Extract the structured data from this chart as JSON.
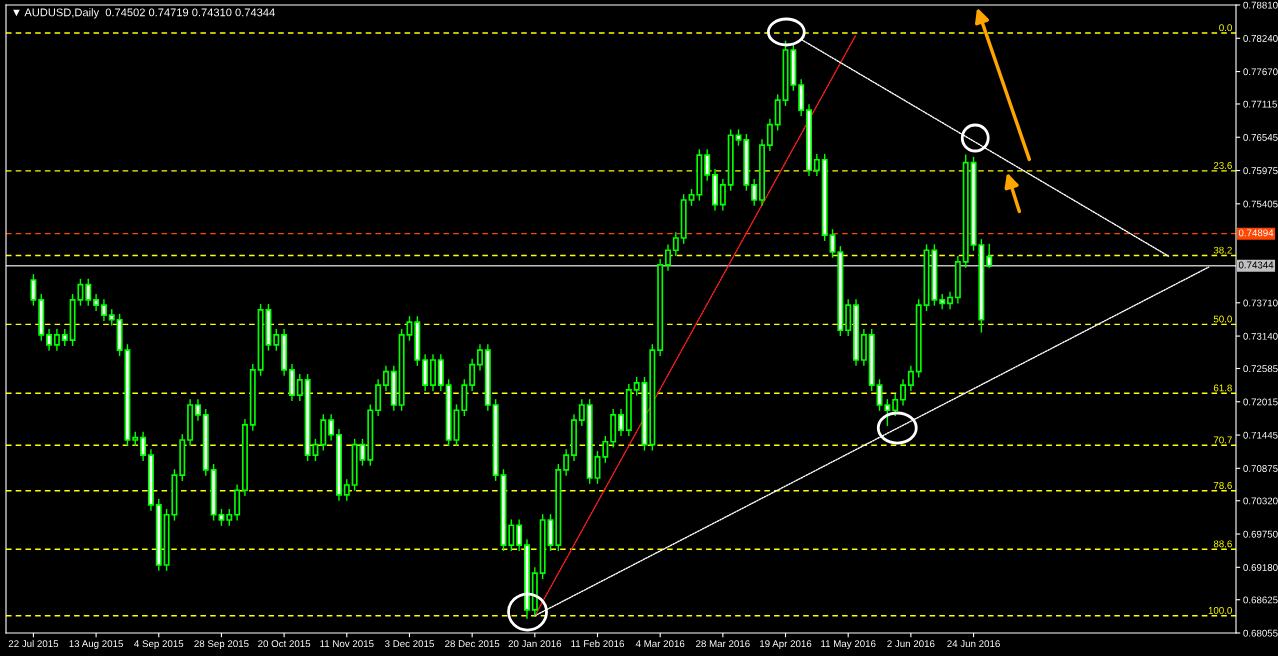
{
  "chart_data": {
    "type": "candlestick",
    "title": "▼ AUDUSD,Daily  0.74502 0.74719 0.74310 0.74344",
    "color": "#00ff00",
    "categories": [
      "22 Jul 2015",
      null,
      null,
      null,
      null,
      null,
      null,
      null,
      "13 Aug 2015",
      null,
      null,
      null,
      null,
      null,
      null,
      null,
      "4 Sep 2015",
      null,
      null,
      null,
      null,
      null,
      null,
      null,
      "28 Sep 2015",
      null,
      null,
      null,
      null,
      null,
      null,
      null,
      "20 Oct 2015",
      null,
      null,
      null,
      null,
      null,
      null,
      null,
      "11 Nov 2015",
      null,
      null,
      null,
      null,
      null,
      null,
      null,
      "3 Dec 2015",
      null,
      null,
      null,
      null,
      null,
      null,
      null,
      "28 Dec 2015",
      null,
      null,
      null,
      null,
      null,
      null,
      null,
      "20 Jan 2016",
      null,
      null,
      null,
      null,
      null,
      null,
      null,
      "11 Feb 2016",
      null,
      null,
      null,
      null,
      null,
      null,
      null,
      "4 Mar 2016",
      null,
      null,
      null,
      null,
      null,
      null,
      null,
      "28 Mar 2016",
      null,
      null,
      null,
      null,
      null,
      null,
      null,
      "19 Apr 2016",
      null,
      null,
      null,
      null,
      null,
      null,
      null,
      "11 May 2016",
      null,
      null,
      null,
      null,
      null,
      null,
      null,
      "2 Jun 2016",
      null,
      null,
      null,
      null,
      null,
      null,
      null,
      "24 Jun 2016",
      null,
      null,
      null,
      null,
      null,
      null,
      null,
      null,
      null,
      null,
      null,
      null,
      null,
      null,
      null,
      null,
      null,
      null,
      null,
      null,
      null,
      null,
      null,
      null,
      null,
      null,
      null,
      null,
      null,
      null,
      null,
      null,
      null
    ],
    "ohlc": [
      [
        0.741,
        0.742,
        0.7366,
        0.7376
      ],
      [
        0.7376,
        0.7386,
        0.7306,
        0.7316
      ],
      [
        0.7316,
        0.7326,
        0.7289,
        0.7299
      ],
      [
        0.7299,
        0.7326,
        0.7289,
        0.7316
      ],
      [
        0.7316,
        0.7326,
        0.7297,
        0.7307
      ],
      [
        0.7307,
        0.7386,
        0.7297,
        0.7376
      ],
      [
        0.7376,
        0.7412,
        0.7366,
        0.7402
      ],
      [
        0.7402,
        0.7412,
        0.7366,
        0.7376
      ],
      [
        0.7376,
        0.7386,
        0.7357,
        0.7367
      ],
      [
        0.7367,
        0.7377,
        0.734,
        0.735
      ],
      [
        0.735,
        0.736,
        0.7332,
        0.7342
      ],
      [
        0.7342,
        0.7352,
        0.728,
        0.729
      ],
      [
        0.729,
        0.73,
        0.7126,
        0.7136
      ],
      [
        0.7136,
        0.715,
        0.7126,
        0.714
      ],
      [
        0.714,
        0.715,
        0.71,
        0.711
      ],
      [
        0.711,
        0.712,
        0.7015,
        0.7025
      ],
      [
        0.7025,
        0.7035,
        0.6912,
        0.6922
      ],
      [
        0.6922,
        0.7018,
        0.6912,
        0.7008
      ],
      [
        0.7008,
        0.7086,
        0.6998,
        0.7076
      ],
      [
        0.7076,
        0.7146,
        0.7066,
        0.7136
      ],
      [
        0.7136,
        0.7206,
        0.7126,
        0.7196
      ],
      [
        0.7196,
        0.7206,
        0.7169,
        0.7179
      ],
      [
        0.7179,
        0.7189,
        0.7075,
        0.7085
      ],
      [
        0.7085,
        0.7095,
        0.6998,
        0.7008
      ],
      [
        0.7008,
        0.7018,
        0.6989,
        0.6999
      ],
      [
        0.6999,
        0.7018,
        0.6989,
        0.7008
      ],
      [
        0.7008,
        0.706,
        0.6998,
        0.705
      ],
      [
        0.705,
        0.7172,
        0.704,
        0.7162
      ],
      [
        0.7162,
        0.7266,
        0.7152,
        0.7256
      ],
      [
        0.7256,
        0.7369,
        0.7246,
        0.7359
      ],
      [
        0.7359,
        0.7369,
        0.7289,
        0.7299
      ],
      [
        0.7299,
        0.7326,
        0.7289,
        0.7316
      ],
      [
        0.7316,
        0.7326,
        0.7246,
        0.7256
      ],
      [
        0.7256,
        0.7266,
        0.7203,
        0.7213
      ],
      [
        0.7213,
        0.7249,
        0.7203,
        0.7239
      ],
      [
        0.7239,
        0.7249,
        0.71,
        0.711
      ],
      [
        0.711,
        0.7138,
        0.71,
        0.7128
      ],
      [
        0.7128,
        0.718,
        0.7118,
        0.717
      ],
      [
        0.717,
        0.718,
        0.7135,
        0.7145
      ],
      [
        0.7145,
        0.7155,
        0.7032,
        0.7042
      ],
      [
        0.7042,
        0.7069,
        0.7032,
        0.7059
      ],
      [
        0.7059,
        0.7138,
        0.7049,
        0.7128
      ],
      [
        0.7128,
        0.7138,
        0.7092,
        0.7102
      ],
      [
        0.7102,
        0.7197,
        0.7092,
        0.7187
      ],
      [
        0.7187,
        0.724,
        0.7177,
        0.723
      ],
      [
        0.723,
        0.7263,
        0.722,
        0.7253
      ],
      [
        0.7253,
        0.7263,
        0.7186,
        0.7196
      ],
      [
        0.7196,
        0.7326,
        0.7186,
        0.7316
      ],
      [
        0.7316,
        0.7348,
        0.7306,
        0.7338
      ],
      [
        0.7338,
        0.7348,
        0.7263,
        0.7273
      ],
      [
        0.7273,
        0.7283,
        0.722,
        0.723
      ],
      [
        0.723,
        0.7283,
        0.722,
        0.7273
      ],
      [
        0.7273,
        0.7283,
        0.722,
        0.723
      ],
      [
        0.723,
        0.724,
        0.7126,
        0.7136
      ],
      [
        0.7136,
        0.7197,
        0.7126,
        0.7187
      ],
      [
        0.7187,
        0.724,
        0.7177,
        0.723
      ],
      [
        0.723,
        0.7275,
        0.722,
        0.7265
      ],
      [
        0.7265,
        0.73,
        0.7255,
        0.729
      ],
      [
        0.729,
        0.73,
        0.7186,
        0.7196
      ],
      [
        0.7196,
        0.7206,
        0.7066,
        0.7076
      ],
      [
        0.7076,
        0.7086,
        0.6946,
        0.6956
      ],
      [
        0.6956,
        0.7,
        0.6946,
        0.699
      ],
      [
        0.699,
        0.7,
        0.6946,
        0.6956
      ],
      [
        0.6956,
        0.6966,
        0.683,
        0.6845
      ],
      [
        0.6845,
        0.6918,
        0.6835,
        0.6908
      ],
      [
        0.6908,
        0.7009,
        0.6898,
        0.6999
      ],
      [
        0.6999,
        0.7009,
        0.6946,
        0.6956
      ],
      [
        0.6956,
        0.7095,
        0.6946,
        0.7085
      ],
      [
        0.7085,
        0.712,
        0.7075,
        0.711
      ],
      [
        0.711,
        0.718,
        0.71,
        0.717
      ],
      [
        0.717,
        0.7206,
        0.716,
        0.7196
      ],
      [
        0.7196,
        0.7206,
        0.7061,
        0.7071
      ],
      [
        0.7071,
        0.7117,
        0.7061,
        0.7107
      ],
      [
        0.7107,
        0.7143,
        0.7097,
        0.7133
      ],
      [
        0.7133,
        0.7189,
        0.7123,
        0.7179
      ],
      [
        0.7179,
        0.7189,
        0.7143,
        0.7153
      ],
      [
        0.7153,
        0.7232,
        0.7143,
        0.7222
      ],
      [
        0.7222,
        0.7244,
        0.7212,
        0.7234
      ],
      [
        0.7234,
        0.7244,
        0.7118,
        0.7128
      ],
      [
        0.7128,
        0.73,
        0.7118,
        0.729
      ],
      [
        0.729,
        0.7446,
        0.728,
        0.7436
      ],
      [
        0.7436,
        0.7471,
        0.7426,
        0.7461
      ],
      [
        0.7461,
        0.7492,
        0.7451,
        0.7482
      ],
      [
        0.7482,
        0.7557,
        0.7472,
        0.7547
      ],
      [
        0.7547,
        0.7566,
        0.7537,
        0.7556
      ],
      [
        0.7556,
        0.7634,
        0.7546,
        0.7624
      ],
      [
        0.7624,
        0.7634,
        0.758,
        0.759
      ],
      [
        0.759,
        0.76,
        0.7529,
        0.7539
      ],
      [
        0.7539,
        0.7583,
        0.7529,
        0.7573
      ],
      [
        0.7573,
        0.7668,
        0.7563,
        0.7658
      ],
      [
        0.7658,
        0.7668,
        0.764,
        0.765
      ],
      [
        0.765,
        0.766,
        0.7563,
        0.7573
      ],
      [
        0.7573,
        0.7583,
        0.7537,
        0.7547
      ],
      [
        0.7547,
        0.7651,
        0.7537,
        0.7641
      ],
      [
        0.7641,
        0.7686,
        0.7631,
        0.7676
      ],
      [
        0.7676,
        0.7728,
        0.7666,
        0.7718
      ],
      [
        0.7718,
        0.782,
        0.7708,
        0.7804
      ],
      [
        0.7804,
        0.7814,
        0.7734,
        0.7744
      ],
      [
        0.7744,
        0.7754,
        0.7691,
        0.7701
      ],
      [
        0.7701,
        0.7711,
        0.7588,
        0.7598
      ],
      [
        0.7598,
        0.7626,
        0.7588,
        0.7616
      ],
      [
        0.7616,
        0.7626,
        0.7477,
        0.7487
      ],
      [
        0.7487,
        0.7497,
        0.7448,
        0.7458
      ],
      [
        0.7458,
        0.7468,
        0.7314,
        0.7324
      ],
      [
        0.7324,
        0.7377,
        0.7314,
        0.7367
      ],
      [
        0.7367,
        0.7377,
        0.7263,
        0.7273
      ],
      [
        0.7273,
        0.7326,
        0.7263,
        0.7316
      ],
      [
        0.7316,
        0.7326,
        0.722,
        0.723
      ],
      [
        0.723,
        0.724,
        0.7186,
        0.7196
      ],
      [
        0.7196,
        0.7206,
        0.716,
        0.7187
      ],
      [
        0.7187,
        0.7215,
        0.7177,
        0.7205
      ],
      [
        0.7205,
        0.724,
        0.7195,
        0.723
      ],
      [
        0.723,
        0.7263,
        0.722,
        0.7253
      ],
      [
        0.7253,
        0.7377,
        0.7243,
        0.7367
      ],
      [
        0.7367,
        0.7471,
        0.7357,
        0.7461
      ],
      [
        0.7461,
        0.7471,
        0.7366,
        0.7376
      ],
      [
        0.7376,
        0.7386,
        0.736,
        0.737
      ],
      [
        0.737,
        0.739,
        0.736,
        0.738
      ],
      [
        0.738,
        0.7451,
        0.737,
        0.7441
      ],
      [
        0.7441,
        0.7625,
        0.7431,
        0.7611
      ],
      [
        0.7611,
        0.7621,
        0.746,
        0.747
      ],
      [
        0.747,
        0.748,
        0.732,
        0.7342
      ],
      [
        0.745,
        0.7472,
        0.7431,
        0.7434
      ],
      null,
      null,
      null,
      null,
      null,
      null,
      null,
      null,
      null,
      null,
      null,
      null,
      null,
      null,
      null,
      null,
      null,
      null,
      null,
      null,
      null,
      null,
      null,
      null,
      null,
      null,
      null,
      null,
      null,
      null,
      null
    ],
    "series": [
      {
        "type": "line",
        "color": "#ff2020",
        "line_style": "dotted",
        "values": [
          null,
          null,
          null,
          null,
          null,
          null,
          null,
          null,
          null,
          null,
          null,
          null,
          null,
          null,
          null,
          null,
          null,
          null,
          null,
          null,
          null,
          null,
          null,
          null,
          null,
          null,
          null,
          null,
          null,
          null,
          null,
          null,
          null,
          null,
          null,
          null,
          null,
          null,
          null,
          null,
          null,
          null,
          null,
          null,
          null,
          null,
          null,
          null,
          null,
          null,
          null,
          null,
          null,
          null,
          null,
          null,
          null,
          null,
          null,
          null,
          null,
          null,
          null,
          null,
          0.6835,
          null,
          null,
          null,
          null,
          null,
          null,
          null,
          null,
          null,
          null,
          null,
          null,
          null,
          null,
          null,
          null,
          null,
          null,
          null,
          null,
          null,
          null,
          null,
          null,
          null,
          null,
          null,
          null,
          null,
          null,
          null,
          null,
          null,
          null,
          null,
          null,
          null,
          null,
          null,
          null,
          0.783,
          null,
          null,
          null,
          null,
          null,
          null,
          null,
          null,
          null,
          null,
          null,
          null,
          null,
          null,
          null,
          null,
          null,
          null,
          null,
          null,
          null,
          null,
          null,
          null,
          null,
          null,
          null,
          null,
          null,
          null,
          null,
          null,
          null,
          null,
          null,
          null,
          null,
          null,
          null,
          null,
          null,
          null,
          null,
          null,
          null,
          null,
          null,
          null
        ]
      },
      {
        "type": "line",
        "color": "#ffffff",
        "line_style": "dotted",
        "values": [
          null,
          null,
          null,
          null,
          null,
          null,
          null,
          null,
          null,
          null,
          null,
          null,
          null,
          null,
          null,
          null,
          null,
          null,
          null,
          null,
          null,
          null,
          null,
          null,
          null,
          null,
          null,
          null,
          null,
          null,
          null,
          null,
          null,
          null,
          null,
          null,
          null,
          null,
          null,
          null,
          null,
          null,
          null,
          null,
          null,
          null,
          null,
          null,
          null,
          null,
          null,
          null,
          null,
          null,
          null,
          null,
          null,
          null,
          null,
          null,
          null,
          null,
          null,
          null,
          null,
          null,
          null,
          null,
          null,
          null,
          null,
          null,
          null,
          null,
          null,
          null,
          null,
          null,
          null,
          null,
          null,
          null,
          null,
          null,
          null,
          null,
          null,
          null,
          null,
          null,
          null,
          null,
          null,
          null,
          null,
          null,
          null,
          null,
          0.7822,
          null,
          null,
          null,
          null,
          null,
          null,
          null,
          null,
          null,
          null,
          null,
          null,
          null,
          null,
          null,
          null,
          null,
          null,
          null,
          null,
          null,
          null,
          null,
          null,
          null,
          null,
          null,
          null,
          null,
          null,
          null,
          null,
          null,
          null,
          null,
          null,
          null,
          null,
          null,
          null,
          null,
          null,
          null,
          null,
          null,
          null,
          0.745,
          null,
          null,
          null,
          null,
          null,
          null,
          null,
          null
        ]
      },
      {
        "type": "line",
        "color": "#ffffff",
        "line_style": "dotted",
        "values": [
          null,
          null,
          null,
          null,
          null,
          null,
          null,
          null,
          null,
          null,
          null,
          null,
          null,
          null,
          null,
          null,
          null,
          null,
          null,
          null,
          null,
          null,
          null,
          null,
          null,
          null,
          null,
          null,
          null,
          null,
          null,
          null,
          null,
          null,
          null,
          null,
          null,
          null,
          null,
          null,
          null,
          null,
          null,
          null,
          null,
          null,
          null,
          null,
          null,
          null,
          null,
          null,
          null,
          null,
          null,
          null,
          null,
          null,
          null,
          null,
          null,
          null,
          null,
          null,
          0.6835,
          null,
          null,
          null,
          null,
          null,
          null,
          null,
          null,
          null,
          null,
          null,
          null,
          null,
          null,
          null,
          null,
          null,
          null,
          null,
          null,
          null,
          null,
          null,
          null,
          null,
          null,
          null,
          null,
          null,
          null,
          null,
          null,
          null,
          null,
          null,
          null,
          null,
          null,
          null,
          null,
          null,
          null,
          null,
          null,
          null,
          null,
          null,
          null,
          null,
          null,
          null,
          null,
          null,
          null,
          null,
          null,
          null,
          null,
          null,
          null,
          null,
          null,
          null,
          null,
          null,
          null,
          null,
          null,
          null,
          null,
          null,
          null,
          null,
          null,
          null,
          null,
          null,
          null,
          null,
          null,
          null,
          null,
          null,
          null,
          null,
          0.7432,
          null,
          null,
          null
        ]
      }
    ],
    "annotations": [
      {
        "text": "0.0",
        "y": 0.7833
      },
      {
        "text": "23.6",
        "y": 0.7597
      },
      {
        "text": "38.2",
        "y": 0.7452
      },
      {
        "text": "50.0",
        "y": 0.7334
      },
      {
        "text": "61.8",
        "y": 0.7216
      },
      {
        "text": "70.7",
        "y": 0.7127
      },
      {
        "text": "78.6",
        "y": 0.7049
      },
      {
        "text": "88.6",
        "y": 0.6949
      },
      {
        "text": "100.0",
        "y": 0.6835
      }
    ],
    "ref_lines": [
      {
        "axis": "y",
        "value": 0.7833,
        "color": "#ffff00",
        "line_style": "dashed"
      },
      {
        "axis": "y",
        "value": 0.7597,
        "color": "#ffff00",
        "line_style": "dashed"
      },
      {
        "axis": "y",
        "value": 0.7452,
        "color": "#ffff00",
        "line_style": "dashed"
      },
      {
        "axis": "y",
        "value": 0.7334,
        "color": "#ffff00",
        "line_style": "dashed"
      },
      {
        "axis": "y",
        "value": 0.7216,
        "color": "#ffff00",
        "line_style": "dashed"
      },
      {
        "axis": "y",
        "value": 0.7127,
        "color": "#ffff00",
        "line_style": "dashed"
      },
      {
        "axis": "y",
        "value": 0.7049,
        "color": "#ffff00",
        "line_style": "dashed"
      },
      {
        "axis": "y",
        "value": 0.6949,
        "color": "#ffff00",
        "line_style": "dashed"
      },
      {
        "axis": "y",
        "value": 0.6835,
        "color": "#ffff00",
        "line_style": "dashed"
      },
      {
        "axis": "y",
        "value": 0.74894,
        "label": "0.74894",
        "color": "#ff4500",
        "line_style": "dashed"
      },
      {
        "axis": "y",
        "value": 0.74344,
        "label": "0.74344",
        "color": "#c0c0c0",
        "line_style": "solid"
      }
    ],
    "ylim": [
      0.68055,
      0.7881
    ],
    "yticks": [
      {
        "value": 0.7881,
        "label": "0.78810"
      },
      {
        "value": 0.7824,
        "label": "0.78240"
      },
      {
        "value": 0.7767,
        "label": "0.77670"
      },
      {
        "value": 0.77115,
        "label": "0.77115"
      },
      {
        "value": 0.76545,
        "label": "0.76545"
      },
      {
        "value": 0.75975,
        "label": "0.75975"
      },
      {
        "value": 0.75405,
        "label": "0.75405"
      },
      {
        "value": 0.7371,
        "label": "0.73710"
      },
      {
        "value": 0.7314,
        "label": "0.73140"
      },
      {
        "value": 0.72585,
        "label": "0.72585"
      },
      {
        "value": 0.72015,
        "label": "0.72015"
      },
      {
        "value": 0.71445,
        "label": "0.71445"
      },
      {
        "value": 0.70875,
        "label": "0.70875"
      },
      {
        "value": 0.7032,
        "label": "0.70320"
      },
      {
        "value": 0.6975,
        "label": "0.69750"
      },
      {
        "value": 0.6918,
        "label": "0.69180"
      },
      {
        "value": 0.68625,
        "label": "0.68625"
      },
      {
        "value": 0.68055,
        "label": "0.68055"
      }
    ]
  }
}
